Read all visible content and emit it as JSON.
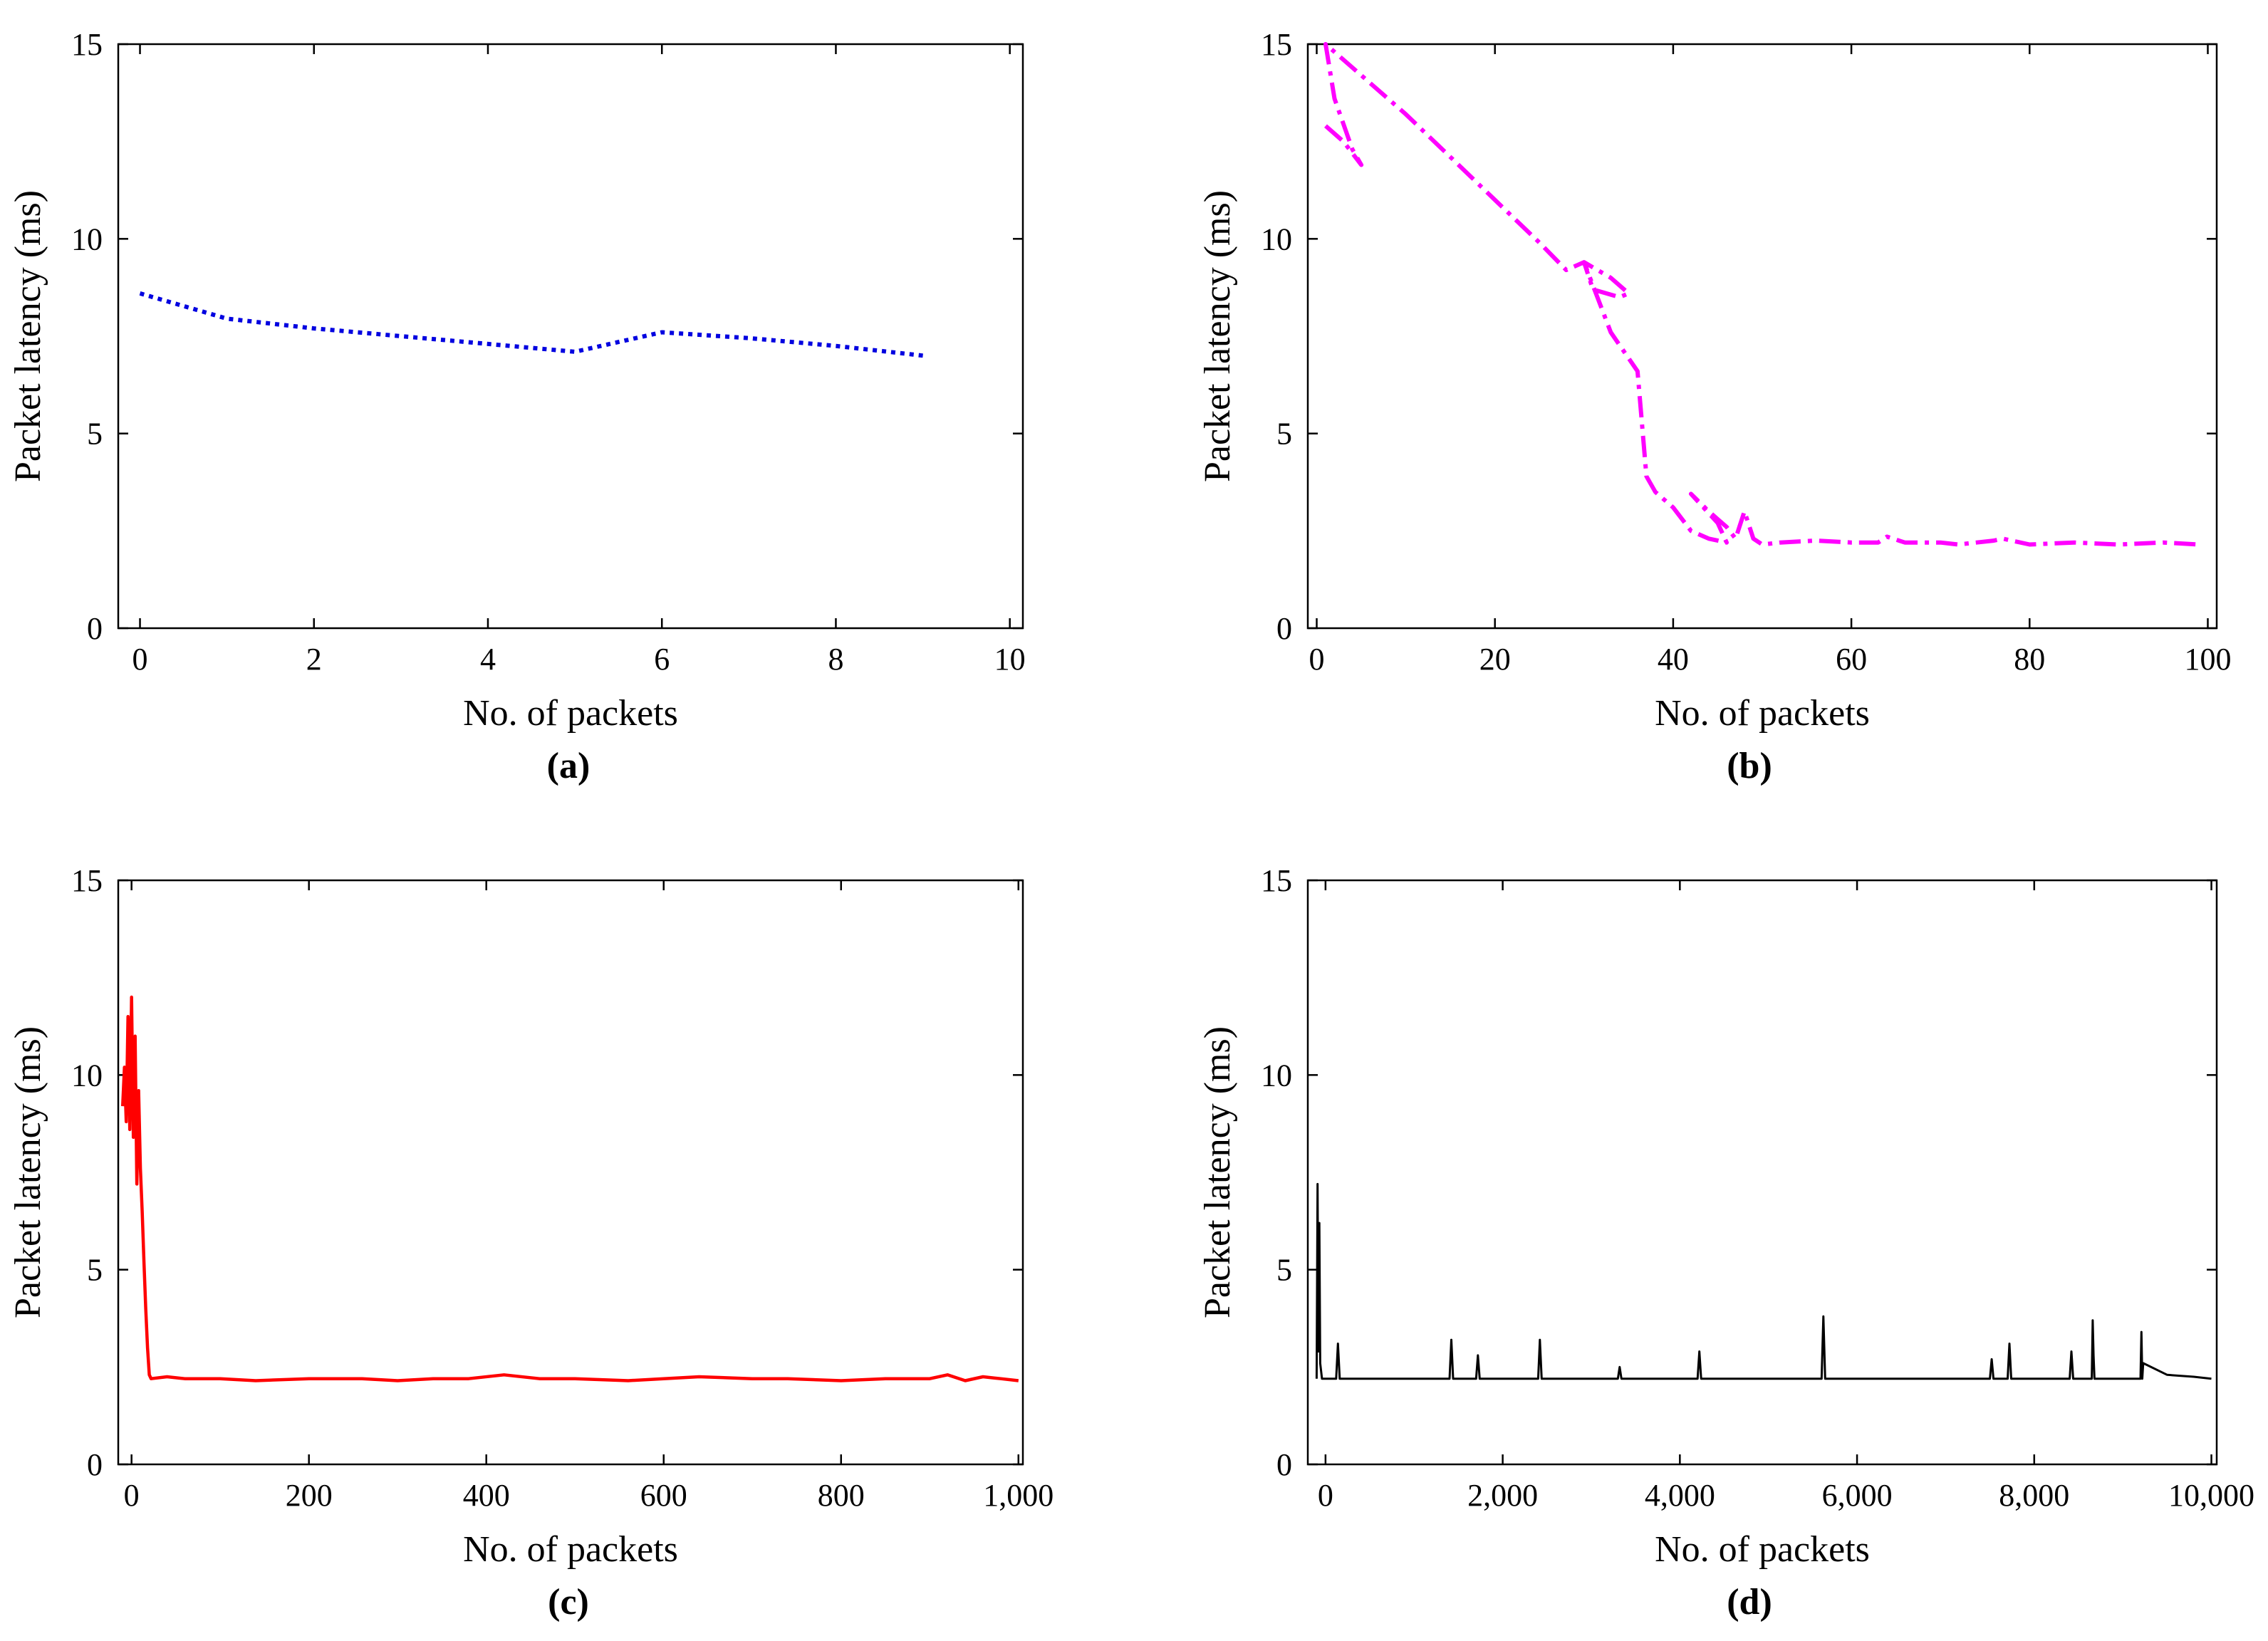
{
  "chart_data": [
    {
      "type": "line",
      "panel_label": "(a)",
      "xlabel": "No. of packets",
      "ylabel": "Packet latency (ms)",
      "xlim": [
        -0.25,
        10.15
      ],
      "ylim": [
        0,
        15
      ],
      "xticks": [
        0,
        2,
        4,
        6,
        8,
        10
      ],
      "xtick_labels": [
        "0",
        "2",
        "4",
        "6",
        "8",
        "10"
      ],
      "yticks": [
        0,
        5,
        10,
        15
      ],
      "ytick_labels": [
        "0",
        "5",
        "10",
        "15"
      ],
      "series": [
        {
          "name": "latency",
          "color": "#0000e0",
          "style": "dotted",
          "x": [
            0,
            1,
            2,
            3,
            4,
            5,
            6,
            7,
            8,
            9
          ],
          "y": [
            8.6,
            7.95,
            7.7,
            7.5,
            7.3,
            7.1,
            7.6,
            7.45,
            7.25,
            7.0
          ]
        }
      ]
    },
    {
      "type": "line",
      "panel_label": "(b)",
      "xlabel": "No. of packets",
      "ylabel": "Packet latency (ms)",
      "xlim": [
        -1,
        101
      ],
      "ylim": [
        0,
        15
      ],
      "xticks": [
        0,
        20,
        40,
        60,
        80,
        100
      ],
      "xtick_labels": [
        "0",
        "20",
        "40",
        "60",
        "80",
        "100"
      ],
      "yticks": [
        0,
        5,
        10,
        15
      ],
      "ytick_labels": [
        "0",
        "5",
        "10",
        "15"
      ],
      "series": [
        {
          "name": "latency",
          "color": "#ff00ff",
          "style": "dashdot",
          "x": [
            1,
            3,
            5,
            4,
            2,
            1,
            10,
            15,
            20,
            25,
            28,
            30,
            33,
            35,
            34,
            31,
            30,
            33,
            36,
            37,
            38,
            40,
            42,
            44,
            46,
            45,
            42,
            44,
            46,
            47,
            48,
            49,
            50,
            52,
            56,
            60,
            63,
            64,
            66,
            70,
            72,
            76,
            77,
            80,
            85,
            90,
            95,
            99
          ],
          "y": [
            12.9,
            12.5,
            11.9,
            12.3,
            13.6,
            15.0,
            13.2,
            12.1,
            11.0,
            9.9,
            9.2,
            9.4,
            9.0,
            8.6,
            8.5,
            8.7,
            9.4,
            7.6,
            6.6,
            3.9,
            3.5,
            3.1,
            2.5,
            2.3,
            2.2,
            2.7,
            3.45,
            3.0,
            2.6,
            2.3,
            3.0,
            2.3,
            2.15,
            2.2,
            2.25,
            2.2,
            2.2,
            2.35,
            2.2,
            2.2,
            2.15,
            2.25,
            2.3,
            2.15,
            2.2,
            2.15,
            2.2,
            2.15
          ]
        }
      ]
    },
    {
      "type": "line",
      "panel_label": "(c)",
      "xlabel": "No. of packets",
      "ylabel": "Packet latency (ms)",
      "xlim": [
        -15,
        1005
      ],
      "ylim": [
        0,
        15
      ],
      "xticks": [
        0,
        200,
        400,
        600,
        800,
        1000
      ],
      "xtick_labels": [
        "0",
        "200",
        "400",
        "600",
        "800",
        "1,000"
      ],
      "yticks": [
        0,
        5,
        10,
        15
      ],
      "ytick_labels": [
        "0",
        "5",
        "10",
        "15"
      ],
      "series": [
        {
          "name": "latency",
          "color": "#ff0000",
          "style": "solid",
          "x": [
            -10,
            -8,
            -6,
            -4,
            -2,
            0,
            2,
            4,
            6,
            8,
            10,
            12,
            14,
            16,
            18,
            20,
            22,
            40,
            60,
            100,
            140,
            200,
            260,
            300,
            340,
            380,
            420,
            460,
            500,
            560,
            600,
            640,
            700,
            740,
            800,
            850,
            900,
            920,
            940,
            960,
            980,
            1000
          ],
          "y": [
            9.2,
            10.2,
            8.8,
            11.5,
            8.6,
            12.0,
            8.4,
            11.0,
            7.2,
            9.6,
            7.6,
            6.5,
            5.2,
            4.0,
            3.0,
            2.3,
            2.2,
            2.25,
            2.2,
            2.2,
            2.15,
            2.2,
            2.2,
            2.15,
            2.2,
            2.2,
            2.3,
            2.2,
            2.2,
            2.15,
            2.2,
            2.25,
            2.2,
            2.2,
            2.15,
            2.2,
            2.2,
            2.3,
            2.15,
            2.25,
            2.2,
            2.15
          ]
        }
      ]
    },
    {
      "type": "line",
      "panel_label": "(d)",
      "xlabel": "No. of packets",
      "ylabel": "Packet latency (ms)",
      "xlim": [
        -200,
        10060
      ],
      "ylim": [
        0,
        15
      ],
      "xticks": [
        0,
        2000,
        4000,
        6000,
        8000,
        10000
      ],
      "xtick_labels": [
        "0",
        "2,000",
        "4,000",
        "6,000",
        "8,000",
        "10,000"
      ],
      "yticks": [
        0,
        5,
        10,
        15
      ],
      "ytick_labels": [
        "0",
        "5",
        "10",
        "15"
      ],
      "series": [
        {
          "name": "latency",
          "color": "#000000",
          "style": "solid",
          "x": [
            -100,
            -90,
            -80,
            -70,
            -60,
            -40,
            0,
            120,
            140,
            160,
            500,
            1000,
            1400,
            1420,
            1440,
            1700,
            1720,
            1740,
            2000,
            2400,
            2420,
            2440,
            3000,
            3300,
            3320,
            3340,
            4000,
            4200,
            4220,
            4240,
            4800,
            5000,
            5600,
            5620,
            5640,
            6000,
            6500,
            7000,
            7500,
            7520,
            7540,
            7700,
            7720,
            7740,
            8000,
            8400,
            8420,
            8440,
            8650,
            8660,
            8670,
            8680,
            8700,
            9000,
            9200,
            9210,
            9220,
            9230,
            9500,
            9800,
            10000
          ],
          "y": [
            2.2,
            7.2,
            2.9,
            6.2,
            2.6,
            2.2,
            2.2,
            2.2,
            3.1,
            2.2,
            2.2,
            2.2,
            2.2,
            3.2,
            2.2,
            2.2,
            2.8,
            2.2,
            2.2,
            2.2,
            3.2,
            2.2,
            2.2,
            2.2,
            2.5,
            2.2,
            2.2,
            2.2,
            2.9,
            2.2,
            2.2,
            2.2,
            2.2,
            3.8,
            2.2,
            2.2,
            2.2,
            2.2,
            2.2,
            2.7,
            2.2,
            2.2,
            3.1,
            2.2,
            2.2,
            2.2,
            2.9,
            2.2,
            2.2,
            3.7,
            2.8,
            2.2,
            2.2,
            2.2,
            2.2,
            3.4,
            2.2,
            2.6,
            2.3,
            2.25,
            2.2
          ]
        }
      ]
    }
  ]
}
